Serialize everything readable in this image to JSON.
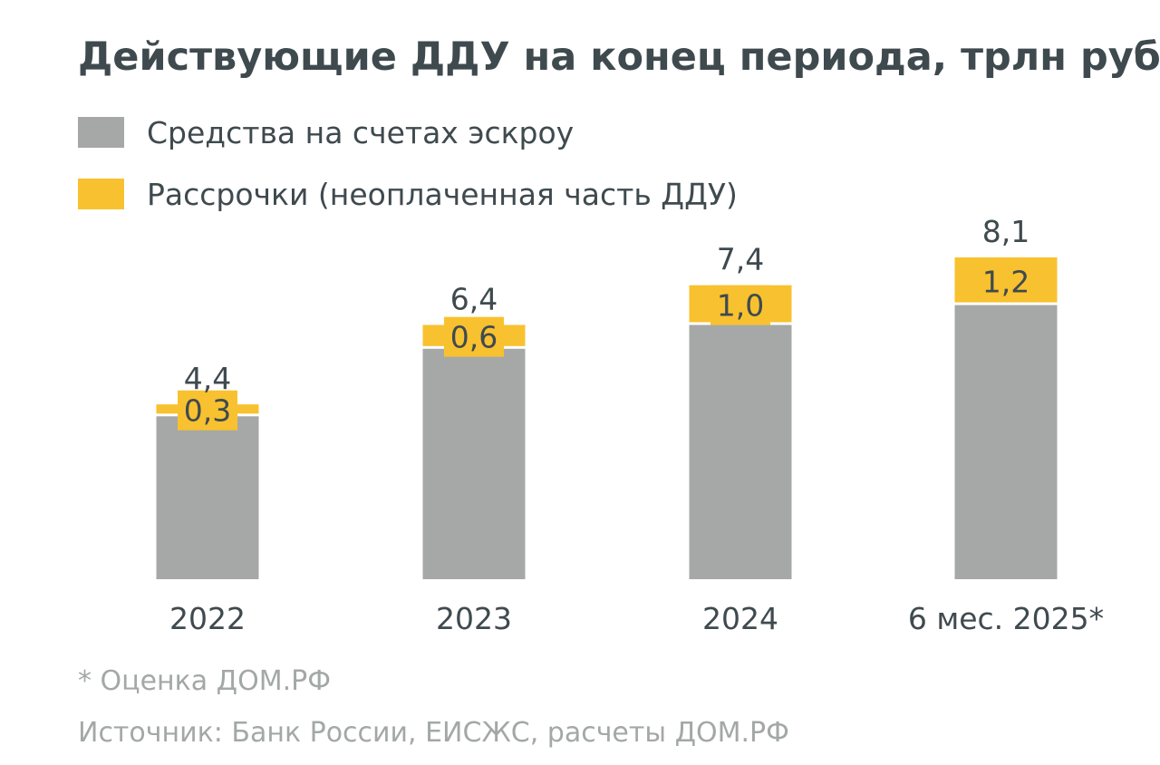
{
  "chart_data": {
    "type": "bar",
    "stacked": true,
    "title": "Действующие ДДУ на конец периода, трлн руб",
    "categories": [
      "2022",
      "2023",
      "2024",
      "6 мес. 2025*"
    ],
    "series": [
      {
        "name": "Средства на счетах эскроу",
        "color": "#a5a8a6",
        "values": [
          4.1,
          5.8,
          6.4,
          6.9
        ]
      },
      {
        "name": "Рассрочки (неоплаченная часть ДДУ)",
        "color": "#f8c12f",
        "values": [
          0.3,
          0.6,
          1.0,
          1.2
        ]
      }
    ],
    "totals": [
      4.4,
      6.4,
      7.4,
      8.1
    ],
    "segment_labels": [
      "0,3",
      "0,6",
      "1,0",
      "1,2"
    ],
    "total_labels": [
      "4,4",
      "6,4",
      "7,4",
      "8,1"
    ],
    "ylim": [
      0,
      8.1
    ],
    "grid": false,
    "legend_position": "top-left",
    "xlabel": "",
    "ylabel": ""
  },
  "footnote": "* Оценка ДОМ.РФ",
  "source": "Источник: Банк России, ЕИСЖС, расчеты ДОМ.РФ"
}
